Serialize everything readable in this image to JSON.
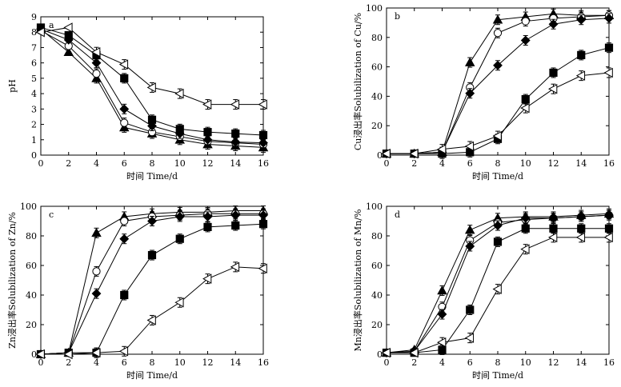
{
  "chart_data": [
    {
      "type": "line",
      "panel_label": "a",
      "xlabel": "时间 Time/d",
      "ylabel": "pH",
      "xlim": [
        0,
        16
      ],
      "ylim": [
        0,
        9
      ],
      "xticks": [
        0,
        2,
        4,
        6,
        8,
        10,
        12,
        14,
        16
      ],
      "yticks": [
        0,
        1,
        2,
        3,
        4,
        5,
        6,
        7,
        8,
        9
      ],
      "x": [
        0,
        2,
        4,
        6,
        8,
        10,
        12,
        14,
        16
      ],
      "series": [
        {
          "marker": "filled-triangle-up",
          "values": [
            8.2,
            6.7,
            5.0,
            1.8,
            1.4,
            1.0,
            0.7,
            0.6,
            0.5
          ]
        },
        {
          "marker": "open-circle",
          "values": [
            8.1,
            7.1,
            5.3,
            2.1,
            1.5,
            1.2,
            0.9,
            0.8,
            0.7
          ]
        },
        {
          "marker": "filled-diamond",
          "values": [
            8.2,
            7.5,
            6.0,
            3.0,
            1.9,
            1.4,
            1.0,
            0.85,
            0.8
          ]
        },
        {
          "marker": "filled-square",
          "values": [
            8.3,
            7.8,
            6.5,
            5.0,
            2.3,
            1.7,
            1.5,
            1.4,
            1.3
          ]
        },
        {
          "marker": "open-triangle-left",
          "values": [
            8.0,
            8.3,
            6.7,
            5.9,
            4.4,
            4.0,
            3.3,
            3.3,
            3.3
          ]
        }
      ]
    },
    {
      "type": "line",
      "panel_label": "b",
      "xlabel": "时间 Time/d",
      "ylabel": "Cu浸出率Solubilization of Cu/%",
      "xlim": [
        0,
        16
      ],
      "ylim": [
        0,
        100
      ],
      "xticks": [
        0,
        2,
        4,
        6,
        8,
        10,
        12,
        14,
        16
      ],
      "yticks": [
        0,
        20,
        40,
        60,
        80,
        100
      ],
      "x": [
        0,
        2,
        4,
        6,
        8,
        10,
        12,
        14,
        16
      ],
      "series": [
        {
          "marker": "filled-triangle-up",
          "values": [
            1,
            1,
            2,
            63,
            92,
            94,
            96,
            95,
            95
          ]
        },
        {
          "marker": "open-circle",
          "values": [
            1,
            1,
            2,
            46,
            83,
            91,
            93,
            94,
            95
          ]
        },
        {
          "marker": "filled-diamond",
          "values": [
            1,
            1,
            2,
            42,
            61,
            78,
            89,
            92,
            93
          ]
        },
        {
          "marker": "filled-square",
          "values": [
            1,
            1,
            1,
            2,
            11,
            38,
            56,
            68,
            73
          ]
        },
        {
          "marker": "open-triangle-left",
          "values": [
            1,
            1,
            4,
            6,
            13,
            32,
            45,
            54,
            56
          ]
        }
      ]
    },
    {
      "type": "line",
      "panel_label": "c",
      "xlabel": "时间 Time/d",
      "ylabel": "Zn浸出率Solubilization of Zn/%",
      "xlim": [
        0,
        16
      ],
      "ylim": [
        0,
        100
      ],
      "xticks": [
        0,
        2,
        4,
        6,
        8,
        10,
        12,
        14,
        16
      ],
      "yticks": [
        0,
        20,
        40,
        60,
        80,
        100
      ],
      "x": [
        0,
        2,
        4,
        6,
        8,
        10,
        12,
        14,
        16
      ],
      "series": [
        {
          "marker": "filled-triangle-up",
          "values": [
            0,
            1,
            82,
            93,
            95,
            96,
            96,
            97,
            97
          ]
        },
        {
          "marker": "open-circle",
          "values": [
            0,
            1,
            56,
            90,
            93,
            94,
            95,
            95,
            95
          ]
        },
        {
          "marker": "filled-diamond",
          "values": [
            0,
            1,
            41,
            78,
            90,
            93,
            93,
            94,
            94
          ]
        },
        {
          "marker": "filled-square",
          "values": [
            0,
            1,
            1,
            40,
            67,
            78,
            86,
            87,
            88
          ]
        },
        {
          "marker": "open-triangle-left",
          "values": [
            0,
            0,
            1,
            2,
            23,
            35,
            51,
            59,
            58
          ]
        }
      ]
    },
    {
      "type": "line",
      "panel_label": "d",
      "xlabel": "时间 Time/d",
      "ylabel": "Mn浸出率Solubilization of Mn/%",
      "xlim": [
        0,
        16
      ],
      "ylim": [
        0,
        100
      ],
      "xticks": [
        0,
        2,
        4,
        6,
        8,
        10,
        12,
        14,
        16
      ],
      "yticks": [
        0,
        20,
        40,
        60,
        80,
        100
      ],
      "x": [
        0,
        2,
        4,
        6,
        8,
        10,
        12,
        14,
        16
      ],
      "series": [
        {
          "marker": "filled-triangle-up",
          "values": [
            1,
            3,
            43,
            84,
            92,
            93,
            93,
            94,
            95
          ]
        },
        {
          "marker": "open-circle",
          "values": [
            1,
            2,
            32,
            77,
            89,
            91,
            92,
            93,
            94
          ]
        },
        {
          "marker": "filled-diamond",
          "values": [
            1,
            2,
            27,
            73,
            87,
            92,
            92,
            93,
            94
          ]
        },
        {
          "marker": "filled-square",
          "values": [
            1,
            1,
            3,
            30,
            76,
            85,
            85,
            85,
            85
          ]
        },
        {
          "marker": "open-triangle-left",
          "values": [
            1,
            1,
            8,
            11,
            44,
            71,
            79,
            79,
            79
          ]
        }
      ]
    }
  ]
}
